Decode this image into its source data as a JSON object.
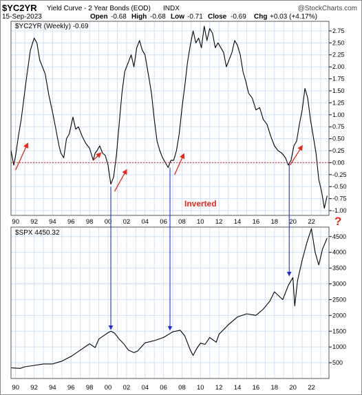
{
  "header": {
    "symbol": "$YC2YR",
    "description": "Yield Curve - 2 Year Bonds (EOD)",
    "exchange": "INDX",
    "watermark": "@StockCharts.com",
    "date": "15-Sep-2023",
    "open_label": "Open",
    "open": "-0.68",
    "high_label": "High",
    "high": "-0.68",
    "low_label": "Low",
    "low": "-0.71",
    "close_label": "Close",
    "close": "-0.69",
    "chg_label": "Chg",
    "chg": "+0.03 (+4.17%)"
  },
  "annotations": {
    "inverted_label": "Inverted",
    "question_mark": "?",
    "arrow_color": "#e8261c",
    "signal_color": "#1f2bd6"
  },
  "chart_data": [
    {
      "type": "line",
      "legend": "$YC2YR (Weekly) -0.69",
      "x_ticks": [
        "90",
        "92",
        "94",
        "96",
        "98",
        "00",
        "02",
        "04",
        "06",
        "08",
        "10",
        "12",
        "14",
        "16",
        "18",
        "20",
        "22"
      ],
      "y_ticks": [
        "2.75",
        "2.50",
        "2.25",
        "2.00",
        "1.75",
        "1.50",
        "1.25",
        "1.00",
        "0.75",
        "0.50",
        "0.25",
        "0.00",
        "-0.25",
        "-0.50",
        "-0.75",
        "-1.00"
      ],
      "ylim": [
        -1.1,
        2.95
      ],
      "reference_line": 0.0,
      "grid": true,
      "series": [
        {
          "x": [
            1989.5,
            1989.8,
            1990.0,
            1990.3,
            1990.6,
            1990.9,
            1991.2,
            1991.6,
            1992.0,
            1992.3,
            1992.6,
            1992.8,
            1993.2,
            1993.6,
            1994.0,
            1994.3,
            1994.7,
            1994.9,
            1995.2,
            1995.5,
            1995.8,
            1996.2,
            1996.5,
            1996.8,
            1997.2,
            1997.6,
            1998.0,
            1998.4,
            1998.6,
            1998.8,
            1999.1,
            1999.4,
            1999.7,
            2000.0,
            2000.3,
            2000.6,
            2000.9,
            2001.2,
            2001.5,
            2001.8,
            2002.2,
            2002.5,
            2002.8,
            2003.1,
            2003.4,
            2003.7,
            2004.0,
            2004.4,
            2004.7,
            2005.0,
            2005.3,
            2005.6,
            2005.9,
            2006.2,
            2006.5,
            2006.8,
            2007.1,
            2007.4,
            2007.7,
            2008.0,
            2008.3,
            2008.6,
            2008.9,
            2009.2,
            2009.5,
            2009.8,
            2010.1,
            2010.4,
            2010.7,
            2011.0,
            2011.3,
            2011.6,
            2011.9,
            2012.2,
            2012.5,
            2012.8,
            2013.1,
            2013.4,
            2013.7,
            2014.0,
            2014.3,
            2014.6,
            2014.9,
            2015.2,
            2015.6,
            2016.0,
            2016.4,
            2016.8,
            2017.2,
            2017.6,
            2018.0,
            2018.4,
            2018.8,
            2019.2,
            2019.5,
            2019.8,
            2020.1,
            2020.4,
            2020.7,
            2021.0,
            2021.3,
            2021.6,
            2021.9,
            2022.2,
            2022.5,
            2022.8,
            2023.1,
            2023.4,
            2023.7
          ],
          "values": [
            0.25,
            -0.05,
            0.15,
            0.55,
            0.9,
            1.35,
            1.8,
            2.35,
            2.6,
            2.5,
            2.15,
            2.05,
            1.85,
            1.4,
            1.05,
            0.75,
            0.35,
            0.2,
            0.1,
            0.5,
            0.6,
            0.95,
            0.7,
            0.75,
            0.55,
            0.4,
            0.3,
            0.05,
            0.2,
            0.25,
            0.35,
            0.2,
            0.15,
            -0.05,
            -0.45,
            -0.3,
            0.15,
            0.8,
            1.45,
            1.9,
            2.1,
            2.25,
            2.0,
            2.4,
            2.55,
            2.35,
            2.25,
            1.8,
            1.45,
            0.9,
            0.45,
            0.25,
            0.1,
            0.0,
            -0.1,
            0.05,
            0.05,
            0.25,
            0.6,
            1.15,
            1.6,
            2.1,
            2.45,
            2.75,
            2.5,
            2.6,
            2.4,
            2.85,
            2.55,
            2.8,
            2.7,
            2.4,
            2.5,
            2.4,
            2.3,
            2.0,
            2.15,
            2.3,
            2.55,
            2.45,
            2.25,
            1.9,
            1.7,
            1.45,
            1.35,
            1.1,
            1.15,
            0.9,
            0.8,
            0.55,
            0.35,
            0.25,
            0.2,
            0.1,
            -0.05,
            0.05,
            0.35,
            0.45,
            0.8,
            1.1,
            1.55,
            1.35,
            0.9,
            0.55,
            0.2,
            -0.35,
            -0.6,
            -0.95,
            -0.69
          ]
        }
      ]
    },
    {
      "type": "line",
      "legend": "$SPX 4450.32",
      "x_ticks": [
        "90",
        "92",
        "94",
        "96",
        "98",
        "00",
        "02",
        "04",
        "06",
        "08",
        "10",
        "12",
        "14",
        "16",
        "18",
        "20",
        "22"
      ],
      "y_ticks": [
        "4500",
        "4000",
        "3500",
        "3000",
        "2500",
        "2000",
        "1500",
        "1000",
        "500"
      ],
      "ylim": [
        0,
        4800
      ],
      "grid": true,
      "series": [
        {
          "x": [
            1989.5,
            1990.0,
            1990.5,
            1991.0,
            1992.0,
            1993.0,
            1994.0,
            1995.0,
            1996.0,
            1997.0,
            1998.0,
            1998.6,
            1999.0,
            1999.5,
            2000.0,
            2000.3,
            2000.7,
            2001.2,
            2001.7,
            2002.2,
            2002.8,
            2003.2,
            2004.0,
            2005.0,
            2006.0,
            2007.0,
            2007.8,
            2008.3,
            2008.9,
            2009.2,
            2009.6,
            2010.0,
            2010.5,
            2011.0,
            2011.7,
            2012.0,
            2013.0,
            2014.0,
            2015.0,
            2016.0,
            2016.8,
            2017.5,
            2018.0,
            2018.9,
            2019.5,
            2020.0,
            2020.2,
            2020.5,
            2021.0,
            2021.5,
            2022.0,
            2022.4,
            2022.8,
            2023.2,
            2023.7
          ],
          "values": [
            340,
            330,
            320,
            370,
            415,
            460,
            460,
            550,
            700,
            900,
            1100,
            980,
            1250,
            1350,
            1450,
            1500,
            1440,
            1250,
            1100,
            900,
            820,
            870,
            1130,
            1200,
            1300,
            1480,
            1530,
            1350,
            900,
            730,
            950,
            1120,
            1080,
            1300,
            1150,
            1400,
            1700,
            1950,
            2050,
            2000,
            2200,
            2450,
            2750,
            2500,
            2950,
            3200,
            2300,
            3100,
            3750,
            4300,
            4750,
            4000,
            3600,
            4100,
            4450.32
          ]
        }
      ]
    }
  ]
}
